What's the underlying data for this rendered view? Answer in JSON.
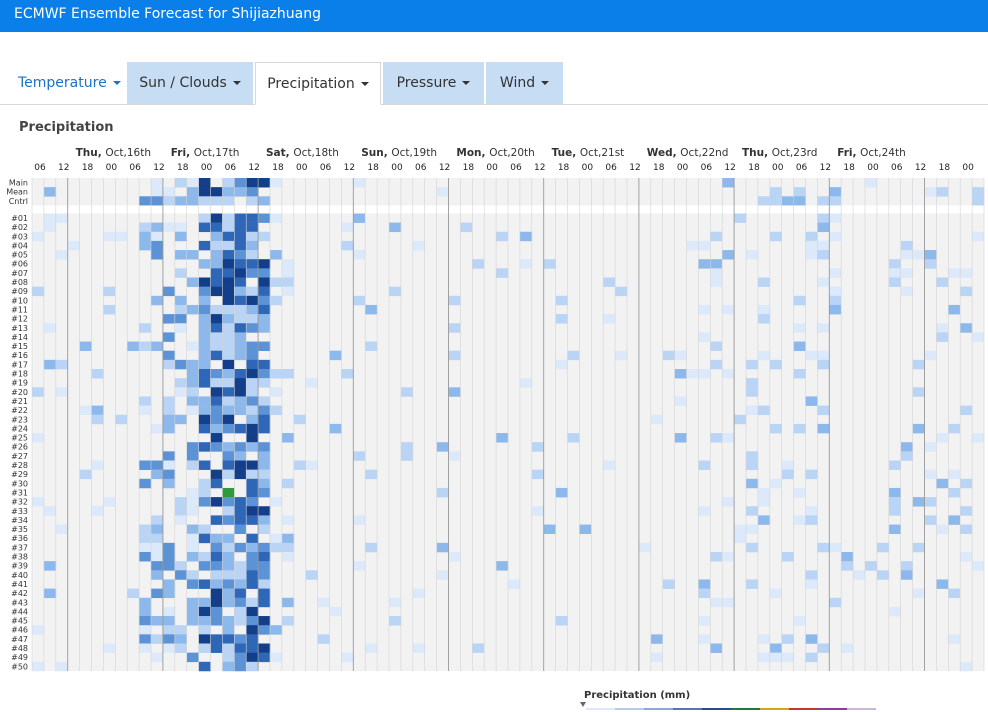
{
  "header": {
    "title": "ECMWF Ensemble Forecast for Shijiazhuang"
  },
  "tabs": [
    {
      "label": "Temperature"
    },
    {
      "label": "Sun / Clouds"
    },
    {
      "label": "Precipitation"
    },
    {
      "label": "Pressure"
    },
    {
      "label": "Wind"
    }
  ],
  "section_title": "Precipitation",
  "colorbar_title": "Precipitation (mm)",
  "chart_data": {
    "type": "heatmap",
    "title": "Precipitation",
    "days": [
      {
        "dow": "Thu",
        "date": "Oct,16th"
      },
      {
        "dow": "Fri",
        "date": "Oct,17th"
      },
      {
        "dow": "Sat",
        "date": "Oct,18th"
      },
      {
        "dow": "Sun",
        "date": "Oct,19th"
      },
      {
        "dow": "Mon",
        "date": "Oct,20th"
      },
      {
        "dow": "Tue",
        "date": "Oct,21st"
      },
      {
        "dow": "Wed",
        "date": "Oct,22nd"
      },
      {
        "dow": "Thu",
        "date": "Oct,23rd"
      },
      {
        "dow": "Fri",
        "date": "Oct,24th"
      }
    ],
    "hour_ticks": [
      "06",
      "12",
      "18",
      "00",
      "06",
      "12",
      "18",
      "00",
      "06",
      "12",
      "18",
      "00",
      "06",
      "12",
      "18",
      "00",
      "06",
      "12",
      "18",
      "00",
      "06",
      "12",
      "18",
      "00",
      "06",
      "12",
      "18",
      "00",
      "06",
      "12",
      "18",
      "00",
      "06",
      "12",
      "18",
      "00",
      "06",
      "12",
      "18",
      "00"
    ],
    "rows": [
      "Main",
      "Mean",
      "Cntrl",
      "#01",
      "#02",
      "#03",
      "#04",
      "#05",
      "#06",
      "#07",
      "#08",
      "#09",
      "#10",
      "#11",
      "#12",
      "#13",
      "#14",
      "#15",
      "#16",
      "#17",
      "#18",
      "#19",
      "#20",
      "#21",
      "#22",
      "#23",
      "#24",
      "#25",
      "#26",
      "#27",
      "#28",
      "#29",
      "#30",
      "#31",
      "#32",
      "#33",
      "#34",
      "#35",
      "#36",
      "#37",
      "#38",
      "#39",
      "#40",
      "#41",
      "#42",
      "#43",
      "#44",
      "#45",
      "#46",
      "#47",
      "#48",
      "#49",
      "#50"
    ],
    "colormap": [
      "#f0f0f0",
      "#dbe9fb",
      "#b9d4f5",
      "#8cb8ec",
      "#5b93d6",
      "#2f67b8",
      "#123e8a",
      "#2e9a3a"
    ],
    "seed": 7,
    "columns": 80
  }
}
